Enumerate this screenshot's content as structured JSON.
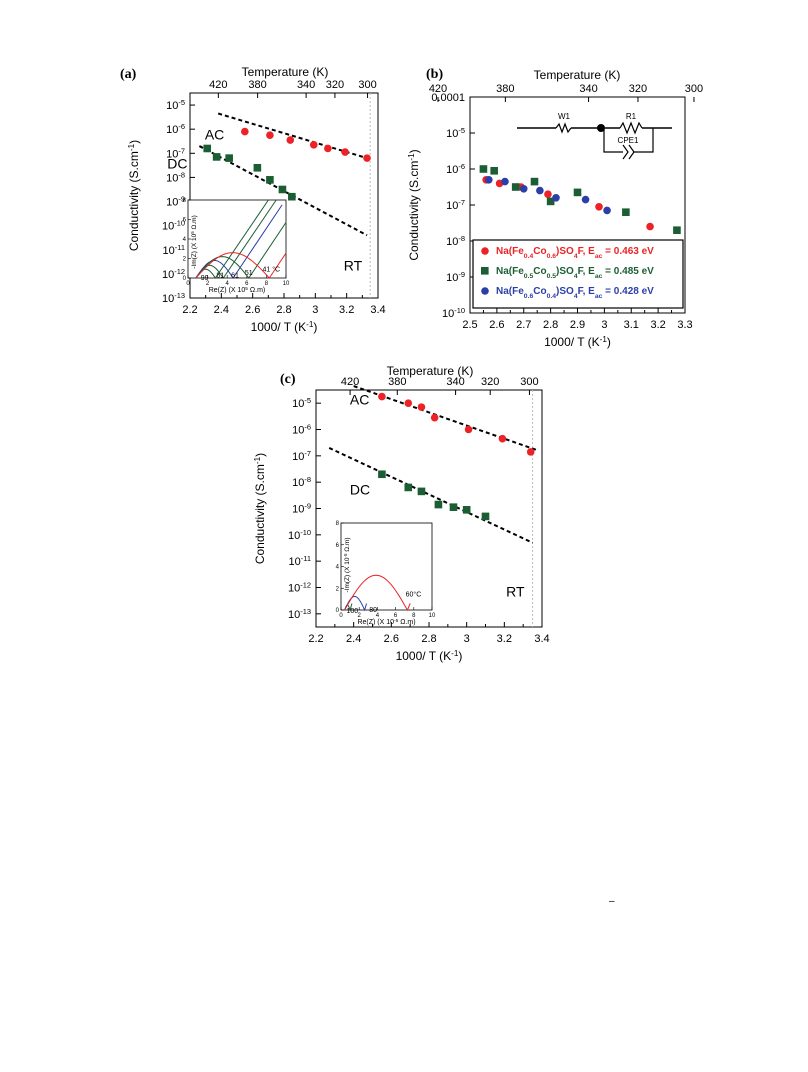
{
  "footer_mark": "–",
  "colors": {
    "red": "#ec2326",
    "green": "#1b5e34",
    "blue": "#2b3fa8",
    "fit": "#000000",
    "rt_line": "#bdbdbd"
  },
  "chart_data": [
    {
      "id": "a",
      "type": "scatter",
      "panel_label": "(a)",
      "top_axis_label": "Temperature (K)",
      "top_ticks": [
        420,
        380,
        340,
        320,
        300
      ],
      "xlabel": "1000/ T (K",
      "xlabel_sup": "-1",
      "xlabel_tail": ")",
      "ylabel": "Conductivity (S.cm",
      "ylabel_sup": "-1",
      "ylabel_tail": ")",
      "xlim": [
        2.2,
        3.4
      ],
      "x_ticks": [
        "2.2",
        "2.4",
        "2.6",
        "2.8",
        "3",
        "3.2",
        "3.4"
      ],
      "y_scale": "log",
      "ylim_exp": [
        -13,
        -4.5
      ],
      "y_tick_exps": [
        -5,
        -6,
        -7,
        -8,
        -9,
        -10,
        -11,
        -12,
        -13
      ],
      "y_tick_base": "10",
      "rt_x": 3.35,
      "rt_label": "RT",
      "series": [
        {
          "name": "AC",
          "color": "red",
          "marker": "circle",
          "x": [
            2.55,
            2.71,
            2.84,
            2.99,
            3.08,
            3.19,
            3.33
          ],
          "log_y": [
            -6.1,
            -6.25,
            -6.45,
            -6.65,
            -6.8,
            -6.95,
            -7.2
          ]
        },
        {
          "name": "DC",
          "color": "green",
          "marker": "square",
          "x": [
            2.31,
            2.37,
            2.45,
            2.63,
            2.71,
            2.79,
            2.85
          ],
          "log_y": [
            -6.8,
            -7.15,
            -7.2,
            -7.6,
            -8.1,
            -8.5,
            -8.8
          ]
        }
      ],
      "fits": [
        {
          "x": [
            2.38,
            3.33
          ],
          "log_y": [
            -5.35,
            -7.2
          ]
        },
        {
          "x": [
            2.26,
            3.33
          ],
          "log_y": [
            -6.7,
            -10.4
          ]
        }
      ],
      "inset": {
        "xlabel": "Re(Z) (X 10",
        "xlabel_sup": "5",
        "xlabel_tail": " Ω.m)",
        "ylabel": "-Im(Z) (X 10",
        "ylabel_sup": "5",
        "ylabel_tail": " Ω.m)",
        "x_ticks": [
          "0",
          "2",
          "4",
          "6",
          "8",
          "10"
        ],
        "y_ticks": [
          "0",
          "2",
          "4",
          "6",
          "8"
        ],
        "xlim": [
          0,
          10
        ],
        "ylim": [
          0,
          8
        ],
        "curve_labels": [
          "99",
          "81",
          "61",
          "51",
          "41 °C"
        ],
        "curves": [
          {
            "color": "green",
            "x_min": 0.8,
            "x_arc_end": 2.8,
            "arc_h": 0.9,
            "spike_x_end": 8.2
          },
          {
            "color": "green",
            "x_min": 0.8,
            "x_arc_end": 3.6,
            "arc_h": 1.3,
            "spike_x_end": 9.0
          },
          {
            "color": "blue",
            "x_min": 0.8,
            "x_arc_end": 4.6,
            "arc_h": 1.8,
            "spike_x_end": 9.6
          },
          {
            "color": "green",
            "x_min": 0.8,
            "x_arc_end": 6.2,
            "arc_h": 2.2,
            "spike_x_end": 10.0
          },
          {
            "color": "red",
            "x_min": 0.8,
            "x_arc_end": 8.3,
            "arc_h": 2.6,
            "spike_x_end": 10.0
          }
        ]
      }
    },
    {
      "id": "b",
      "type": "scatter",
      "panel_label": "(b)",
      "top_axis_label": "Temperature (K)",
      "top_ticks": [
        420,
        380,
        340,
        320,
        300
      ],
      "xlabel": "1000/ T (K",
      "xlabel_sup": "-1",
      "xlabel_tail": ")",
      "ylabel": "Conductivity (S.cm",
      "ylabel_sup": "-1",
      "ylabel_tail": ")",
      "xlim": [
        2.5,
        3.3
      ],
      "x_ticks": [
        "2.5",
        "2.6",
        "2.7",
        "2.8",
        "2.9",
        "3",
        "3.1",
        "3.2",
        "3.3"
      ],
      "y_scale": "log",
      "ylim_exp": [
        -10,
        -4
      ],
      "y_tick_labels": [
        {
          "exp": -4,
          "text": "0.0001"
        },
        {
          "exp": -5,
          "text": "10",
          "sup": "-5"
        },
        {
          "exp": -6,
          "text": "10",
          "sup": "-6"
        },
        {
          "exp": -7,
          "text": "10",
          "sup": "-7"
        },
        {
          "exp": -8,
          "text": "10",
          "sup": "-8"
        },
        {
          "exp": -9,
          "text": "10",
          "sup": "-9"
        },
        {
          "exp": -10,
          "text": "10",
          "sup": "-10"
        }
      ],
      "circuit": {
        "w1": "W1",
        "r1": "R1",
        "cpe1": "CPE1"
      },
      "legend_position": "bottom-right",
      "series": [
        {
          "color": "red",
          "marker": "circle",
          "legend": {
            "pre": "Na(Fe",
            "s1": "0.4",
            "m1": "Co",
            "s2": "0.6",
            "post": ")SO",
            "s3": "4",
            "tail": "F, E",
            "s4": "ac",
            "val": " = 0.463 eV"
          },
          "x": [
            2.56,
            2.61,
            2.69,
            2.79,
            2.98,
            3.17
          ],
          "log_y": [
            -6.3,
            -6.4,
            -6.5,
            -6.7,
            -7.05,
            -7.6
          ]
        },
        {
          "color": "green",
          "marker": "square",
          "legend": {
            "pre": "Na(Fe",
            "s1": "0.5",
            "m1": "Co",
            "s2": "0.5",
            "post": ")SO",
            "s3": "4",
            "tail": "F, E",
            "s4": "ac",
            "val": " = 0.485 eV"
          },
          "x": [
            2.55,
            2.59,
            2.67,
            2.74,
            2.8,
            2.9,
            3.08,
            3.27
          ],
          "log_y": [
            -6.0,
            -6.05,
            -6.5,
            -6.35,
            -6.9,
            -6.65,
            -7.2,
            -7.7
          ]
        },
        {
          "color": "blue",
          "marker": "circle",
          "legend": {
            "pre": "Na(Fe",
            "s1": "0.6",
            "m1": "Co",
            "s2": "0.4",
            "post": ")SO",
            "s3": "4",
            "tail": "F, E",
            "s4": "ac",
            "val": " = 0.428 eV"
          },
          "x": [
            2.57,
            2.63,
            2.7,
            2.76,
            2.82,
            2.93,
            3.01
          ],
          "log_y": [
            -6.3,
            -6.35,
            -6.55,
            -6.6,
            -6.8,
            -6.85,
            -7.15
          ]
        }
      ]
    },
    {
      "id": "c",
      "type": "scatter",
      "panel_label": "(c)",
      "top_axis_label": "Temperature (K)",
      "top_ticks": [
        420,
        380,
        340,
        320,
        300
      ],
      "xlabel": "1000/ T (K",
      "xlabel_sup": "-1",
      "xlabel_tail": ")",
      "ylabel": "Conductivity (S.cm",
      "ylabel_sup": "-1",
      "ylabel_tail": ")",
      "xlim": [
        2.2,
        3.4
      ],
      "x_ticks": [
        "2.2",
        "2.4",
        "2.6",
        "2.8",
        "3",
        "3.2",
        "3.4"
      ],
      "y_scale": "log",
      "ylim_exp": [
        -13.5,
        -4.5
      ],
      "y_tick_exps": [
        -5,
        -6,
        -7,
        -8,
        -9,
        -10,
        -11,
        -12,
        -13
      ],
      "y_tick_base": "10",
      "rt_x": 3.35,
      "rt_label": "RT",
      "series": [
        {
          "name": "AC",
          "color": "red",
          "marker": "circle",
          "x": [
            2.55,
            2.69,
            2.76,
            2.83,
            3.01,
            3.19,
            3.34
          ],
          "log_y": [
            -4.75,
            -5.0,
            -5.15,
            -5.55,
            -6.0,
            -6.35,
            -6.85
          ]
        },
        {
          "name": "DC",
          "color": "green",
          "marker": "square",
          "x": [
            2.55,
            2.69,
            2.76,
            2.85,
            2.93,
            3.0,
            3.1
          ],
          "log_y": [
            -7.7,
            -8.2,
            -8.35,
            -8.85,
            -8.95,
            -9.05,
            -9.3
          ]
        }
      ],
      "fits": [
        {
          "x": [
            2.4,
            3.38
          ],
          "log_y": [
            -4.35,
            -6.8
          ]
        },
        {
          "x": [
            2.27,
            3.35
          ],
          "log_y": [
            -6.7,
            -10.3
          ]
        }
      ],
      "inset": {
        "xlabel": "Re(Z) (X 10",
        "xlabel_sup": "-5",
        "xlabel_tail": " Ω.m)",
        "ylabel": "-Im(Z) (X 10",
        "ylabel_sup": "-5",
        "ylabel_tail": " Ω.m)",
        "x_ticks": [
          "0",
          "2",
          "4",
          "6",
          "8",
          "10"
        ],
        "y_ticks": [
          "0",
          "2",
          "4",
          "6",
          "8"
        ],
        "xlim": [
          0,
          10
        ],
        "ylim": [
          0,
          8
        ],
        "curve_labels": [
          "100",
          "80",
          "60°C"
        ],
        "curves": [
          {
            "color": "green",
            "x_min": 0.4,
            "x_arc_end": 1.0,
            "arc_h": 0.45,
            "spike_x_end": 1.2
          },
          {
            "color": "blue",
            "x_min": 0.4,
            "x_arc_end": 2.6,
            "arc_h": 1.25,
            "spike_x_end": 2.8
          },
          {
            "color": "red",
            "x_min": 0.4,
            "x_arc_end": 7.3,
            "arc_h": 3.2,
            "spike_x_end": 7.6
          }
        ]
      }
    }
  ]
}
